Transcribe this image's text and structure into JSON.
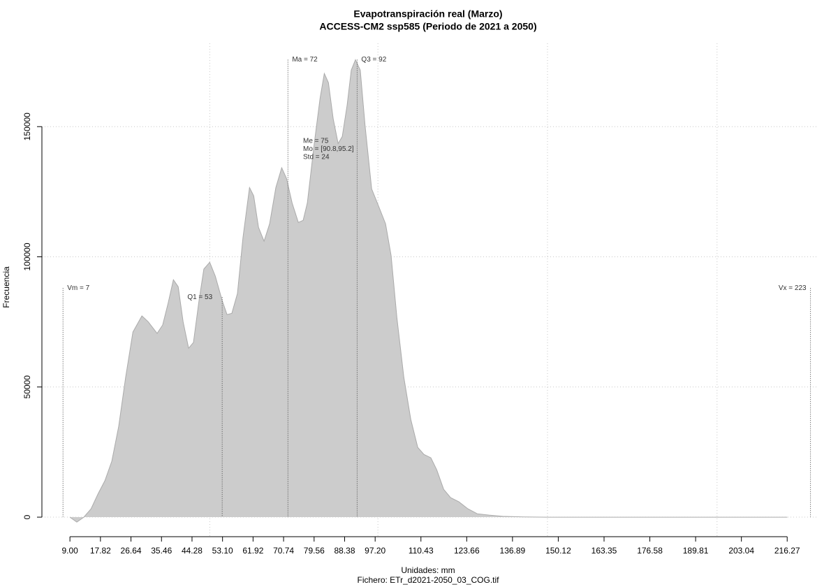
{
  "chart_data": {
    "type": "area",
    "title": "Evapotranspiración real (Marzo)",
    "subtitle": "ACCESS-CM2 ssp585 (Periodo de 2021 a 2050)",
    "xlabel": "Unidades: mm",
    "xlabel2": "Fichero: ETr_d2021-2050_03_COG.tif",
    "ylabel": "Frecuencia",
    "x": [
      9,
      11.0,
      13.0,
      15.1,
      17.1,
      19.1,
      21.1,
      23.1,
      25.1,
      27.2,
      29.8,
      31.6,
      34.2,
      35.8,
      37.3,
      38.9,
      40.3,
      41.7,
      43.3,
      44.7,
      46.3,
      47.7,
      49.4,
      51.0,
      53.0,
      54.4,
      55.8,
      57.4,
      59.0,
      60.9,
      62.1,
      63.5,
      65.1,
      66.7,
      68.5,
      70.2,
      71.6,
      73.2,
      75.0,
      76.4,
      77.6,
      79.6,
      81.3,
      82.5,
      83.7,
      85.1,
      86.5,
      87.7,
      89.1,
      90.3,
      91.5,
      92.9,
      94.3,
      96.2,
      98.2,
      100.2,
      101.8,
      103.5,
      105.5,
      107.5,
      109.5,
      111.3,
      113.3,
      115.0,
      117.0,
      119.0,
      121.4,
      124.0,
      126.7,
      130.1,
      134.1,
      140.2,
      147.0,
      216.3
    ],
    "series": [
      {
        "name": "Frecuencia",
        "color": "#cccccc",
        "values": [
          0,
          -1900,
          0,
          3200,
          8900,
          14000,
          21500,
          34900,
          53700,
          71100,
          77300,
          75100,
          70600,
          73800,
          81800,
          91200,
          88500,
          75100,
          64900,
          67100,
          83200,
          95300,
          97900,
          92600,
          83200,
          77800,
          78300,
          85900,
          107300,
          126600,
          123400,
          111300,
          106000,
          112700,
          126600,
          134200,
          130100,
          120700,
          113200,
          114000,
          120700,
          143500,
          161000,
          170400,
          166900,
          152900,
          143500,
          146200,
          158300,
          171700,
          175700,
          171700,
          150300,
          126100,
          119400,
          112700,
          100600,
          76500,
          53700,
          37600,
          26800,
          24100,
          22800,
          18200,
          10700,
          7500,
          5900,
          3200,
          1300,
          800,
          300,
          100,
          0,
          0
        ]
      }
    ],
    "xlim": [
      0.9,
      224.9
    ],
    "ylim": [
      -7500,
      182000
    ],
    "xticks": [
      {
        "value": 9,
        "label": "9.00"
      },
      17.82,
      26.64,
      35.46,
      44.28,
      {
        "value": 53.1,
        "label": "53.10"
      },
      61.92,
      70.74,
      79.56,
      88.38,
      {
        "value": 97.2,
        "label": "97.20"
      },
      110.43,
      123.66,
      136.89,
      150.12,
      163.35,
      176.58,
      189.81,
      203.04,
      216.27
    ],
    "yticks": [
      0,
      50000,
      100000,
      150000
    ],
    "xgrid": [
      49.4,
      98,
      147,
      196
    ],
    "grid": true,
    "annotations": [
      {
        "label": "Vm = 7",
        "x": 7,
        "y": 88000
      },
      {
        "label": "Q1 = 53",
        "x": 53,
        "y": 84500
      },
      {
        "label": "Ma = 72",
        "x": 72,
        "y": 175700
      },
      {
        "label": "Q3 = 92",
        "x": 92,
        "y": 175700
      },
      {
        "label": "Vx = 223",
        "x": 223,
        "y": 88000
      }
    ],
    "stats": [
      "Me = 75",
      "Mo = [90.8,95.2]",
      "Std = 24"
    ]
  }
}
